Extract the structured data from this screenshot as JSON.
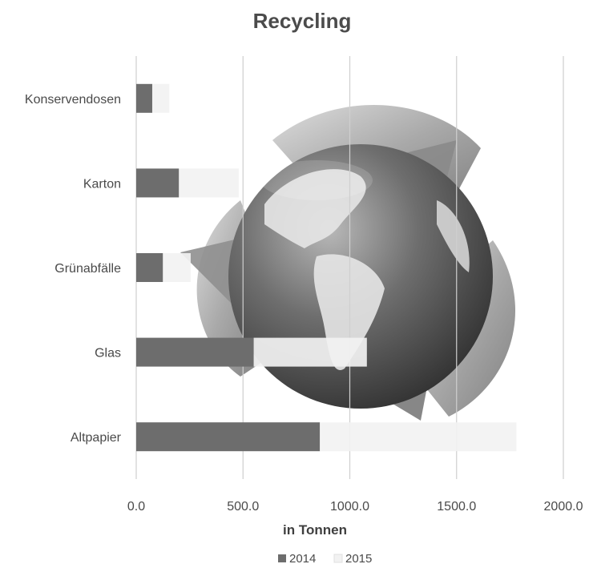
{
  "chart_data": {
    "type": "bar",
    "orientation": "horizontal",
    "stacked": true,
    "title": "Recycling",
    "xlabel": "in Tonnen",
    "ylabel": "",
    "categories": [
      "Konservendosen",
      "Karton",
      "Grünabfälle",
      "Glas",
      "Altpapier"
    ],
    "series": [
      {
        "name": "2014",
        "values": [
          75,
          200,
          125,
          550,
          860
        ],
        "color": "#6d6d6d"
      },
      {
        "name": "2015",
        "values": [
          80,
          280,
          130,
          530,
          920
        ],
        "color": "#f2f2f2"
      }
    ],
    "xlim": [
      0,
      2000
    ],
    "xticks": [
      "0.0",
      "500.0",
      "1000.0",
      "1500.0",
      "2000.0"
    ],
    "grid": true,
    "legend_position": "bottom",
    "background_image": "recycling-globe-icon"
  }
}
